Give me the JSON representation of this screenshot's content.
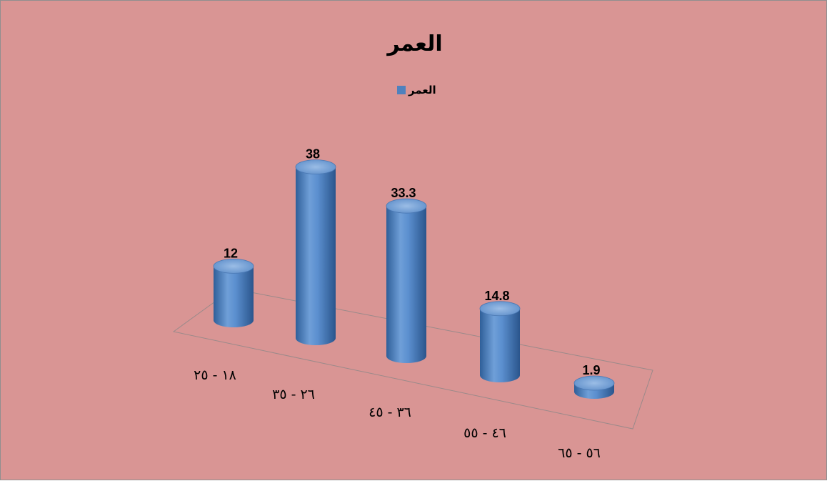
{
  "chart_data": {
    "type": "bar",
    "style": "3d-cylinder",
    "title": "العمر",
    "legend_position": "top",
    "categories": [
      "١٨ - ٢٥",
      "٢٦ - ٣٥",
      "٣٦ - ٤٥",
      "٤٦ - ٥٥",
      "٥٦ - ٦٥"
    ],
    "series": [
      {
        "name": "العمر",
        "values": [
          12,
          38,
          33.3,
          14.8,
          1.9
        ],
        "value_labels": [
          "12",
          "38",
          "33.3",
          "14.8",
          "1.9"
        ]
      }
    ],
    "colors": {
      "background": "#d99594",
      "bar": "#4f81bd",
      "bar_light": "#8db3e2",
      "bar_dark": "#2f5f99"
    },
    "grid": false
  }
}
